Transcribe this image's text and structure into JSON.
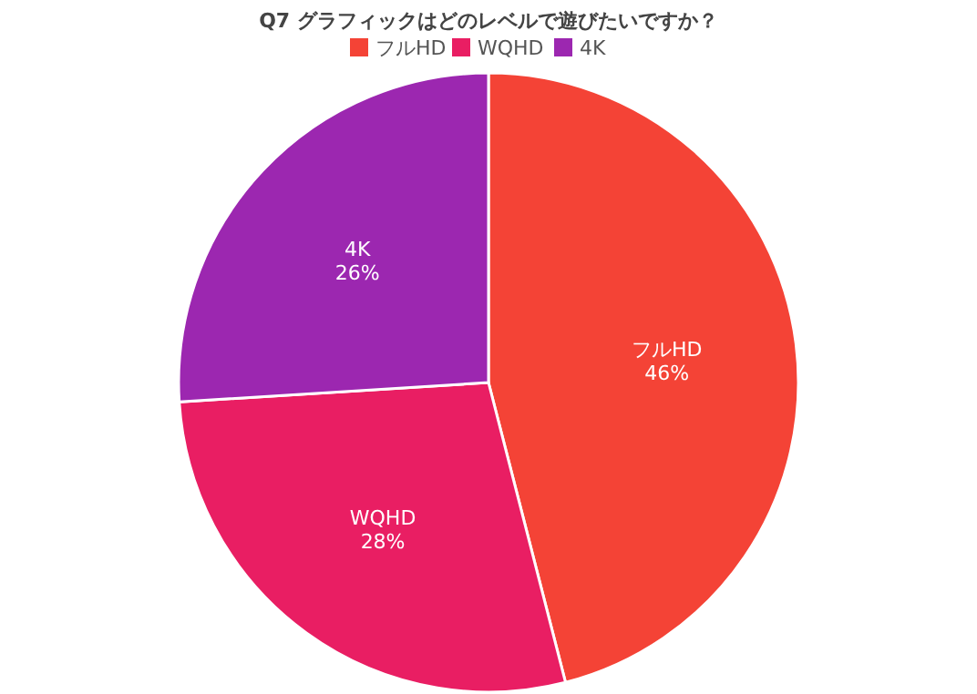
{
  "chart_data": {
    "type": "pie",
    "title": "Q7 グラフィックはどのレベルで遊びたいですか？",
    "categories": [
      "フルHD",
      "WQHD",
      "4K"
    ],
    "values": [
      46,
      28,
      26
    ],
    "colors": [
      "#f44336",
      "#e91e63",
      "#9c27b0"
    ],
    "value_labels": [
      "46%",
      "28%",
      "26%"
    ],
    "legend": "top"
  }
}
